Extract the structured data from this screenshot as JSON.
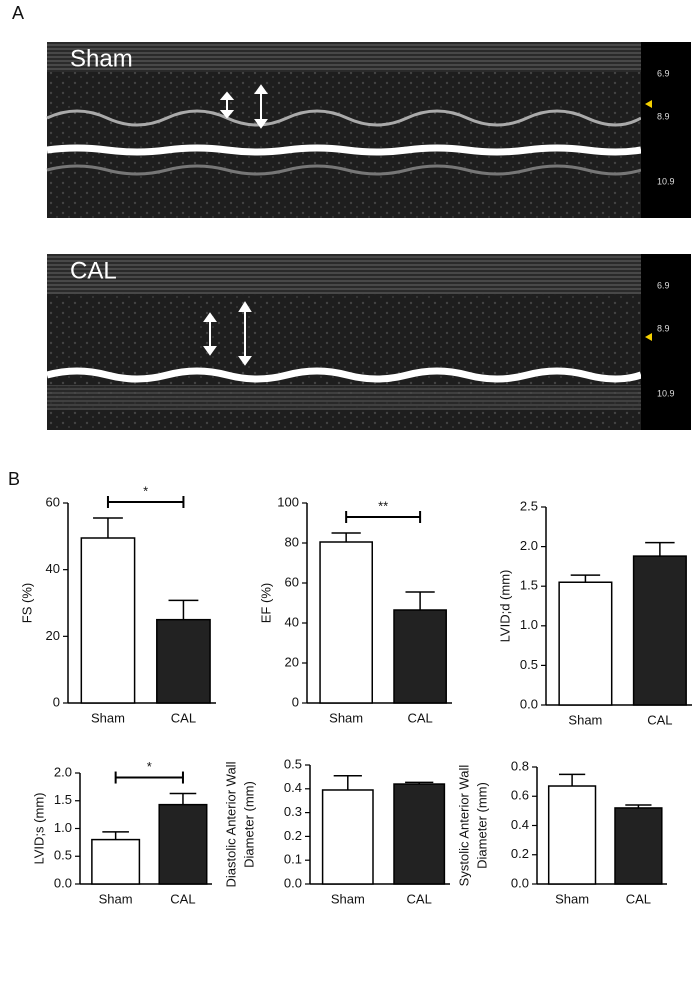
{
  "figure": {
    "panel_a": "A",
    "panel_b": "B",
    "images": [
      {
        "label": "Sham",
        "scale": [
          6.9,
          8.9,
          10.9
        ]
      },
      {
        "label": "CAL",
        "scale": [
          6.9,
          8.9,
          10.9
        ]
      }
    ]
  },
  "chart_data": [
    {
      "type": "bar",
      "ylabel": "FS (%)",
      "categories": [
        "Sham",
        "CAL"
      ],
      "values": [
        49.5,
        25
      ],
      "errors": [
        6,
        5.8
      ],
      "colors": [
        "#ffffff",
        "#222222"
      ],
      "ylim": [
        0,
        60
      ],
      "yticks": [
        0,
        20,
        40,
        60
      ],
      "significance": "*"
    },
    {
      "type": "bar",
      "ylabel": "EF (%)",
      "categories": [
        "Sham",
        "CAL"
      ],
      "values": [
        80.5,
        46.5
      ],
      "errors": [
        4.5,
        9
      ],
      "colors": [
        "#ffffff",
        "#222222"
      ],
      "ylim": [
        0,
        100
      ],
      "yticks": [
        0,
        20,
        40,
        60,
        80,
        100
      ],
      "significance": "**"
    },
    {
      "type": "bar",
      "ylabel": "LVID;d (mm)",
      "categories": [
        "Sham",
        "CAL"
      ],
      "values": [
        1.55,
        1.88
      ],
      "errors": [
        0.09,
        0.17
      ],
      "colors": [
        "#ffffff",
        "#222222"
      ],
      "ylim": [
        0,
        2.5
      ],
      "yticks": [
        {
          "value": 0,
          "label": "0.0"
        },
        0.5,
        {
          "value": 1,
          "label": "1.0"
        },
        1.5,
        {
          "value": 2,
          "label": "2.0"
        },
        2.5
      ]
    },
    {
      "type": "bar",
      "ylabel": "LVID;s (mm)",
      "categories": [
        "Sham",
        "CAL"
      ],
      "values": [
        0.8,
        1.43
      ],
      "errors": [
        0.14,
        0.2
      ],
      "colors": [
        "#ffffff",
        "#222222"
      ],
      "ylim": [
        0,
        2
      ],
      "yticks": [
        {
          "value": 0,
          "label": "0.0"
        },
        0.5,
        {
          "value": 1,
          "label": "1.0"
        },
        1.5,
        {
          "value": 2,
          "label": "2.0"
        }
      ],
      "significance": "*"
    },
    {
      "type": "bar",
      "ylabel": [
        "Diastolic Anterior Wall",
        "Diameter (mm)"
      ],
      "categories": [
        "Sham",
        "CAL"
      ],
      "values": [
        0.395,
        0.42
      ],
      "errors": [
        0.06,
        0.007
      ],
      "colors": [
        "#ffffff",
        "#222222"
      ],
      "ylim": [
        0,
        0.5
      ],
      "yticks": [
        {
          "value": 0,
          "label": "0.0"
        },
        0.1,
        0.2,
        0.3,
        0.4,
        0.5
      ]
    },
    {
      "type": "bar",
      "ylabel": [
        "Systolic Anterior Wall",
        "Diameter (mm)"
      ],
      "categories": [
        "Sham",
        "CAL"
      ],
      "values": [
        0.67,
        0.52
      ],
      "errors": [
        0.08,
        0.02
      ],
      "colors": [
        "#ffffff",
        "#222222"
      ],
      "ylim": [
        0,
        0.8
      ],
      "yticks": [
        {
          "value": 0,
          "label": "0.0"
        },
        0.2,
        0.4,
        0.6,
        0.8
      ]
    }
  ]
}
